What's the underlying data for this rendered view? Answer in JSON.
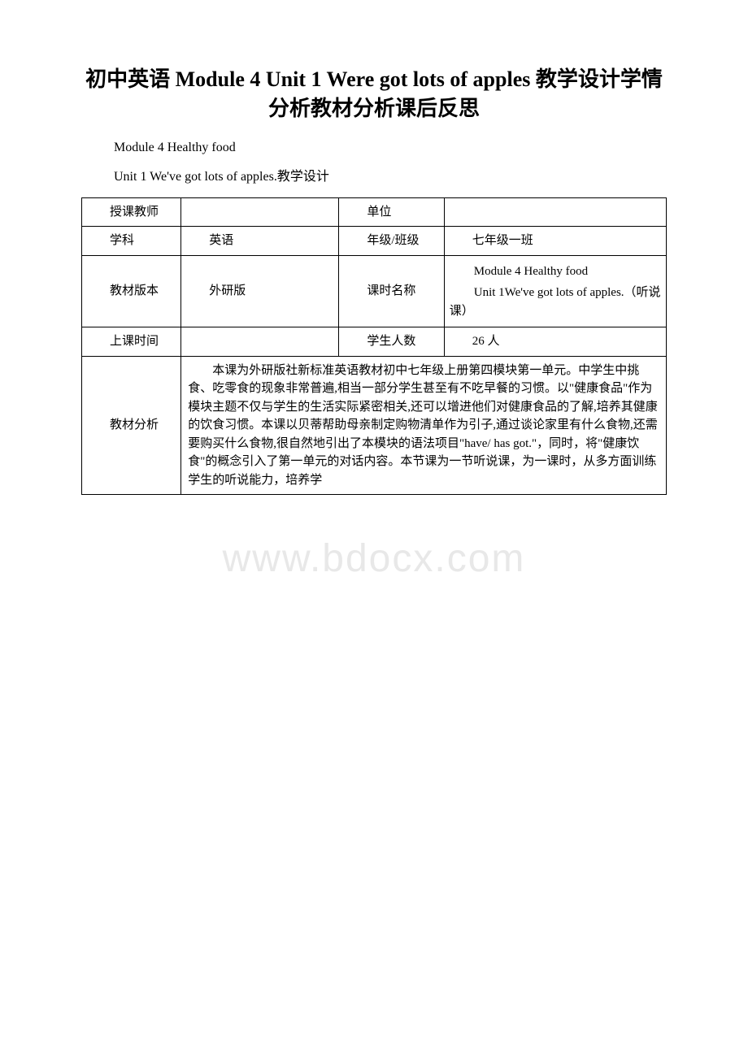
{
  "title": "初中英语 Module 4 Unit 1 Were got lots of apples 教学设计学情分析教材分析课后反思",
  "subtitle1": "Module 4 Healthy food",
  "subtitle2": "Unit 1 We've got lots of apples.教学设计",
  "watermark": "www.bdocx.com",
  "table": {
    "row1": {
      "label1": "授课教师",
      "value1": "",
      "label2": "单位",
      "value2": ""
    },
    "row2": {
      "label1": "学科",
      "value1": "英语",
      "label2": "年级/班级",
      "value2": "七年级一班"
    },
    "row3": {
      "label1": "教材版本",
      "value1": "外研版",
      "label2": "课时名称",
      "value2_line1": "Module 4 Healthy food",
      "value2_line2": "Unit 1We've got lots of apples.（听说课）"
    },
    "row4": {
      "label1": "上课时间",
      "value1": "",
      "label2": "学生人数",
      "value2": "26 人"
    },
    "row5": {
      "label1": "教材分析",
      "content": "本课为外研版社新标准英语教材初中七年级上册第四模块第一单元。中学生中挑食、吃零食的现象非常普遍,相当一部分学生甚至有不吃早餐的习惯。以\"健康食品\"作为模块主题不仅与学生的生活实际紧密相关,还可以增进他们对健康食品的了解,培养其健康的饮食习惯。本课以贝蒂帮助母亲制定购物清单作为引子,通过谈论家里有什么食物,还需要购买什么食物,很自然地引出了本模块的语法项目\"have/ has got.\"，同时，将\"健康饮食\"的概念引入了第一单元的对话内容。本节课为一节听说课，为一课时，从多方面训练学生的听说能力，培养学"
    }
  },
  "styling": {
    "background_color": "#ffffff",
    "border_color": "#000000",
    "text_color": "#000000",
    "watermark_color": "#e8e8e8",
    "title_fontsize": 26,
    "body_fontsize": 15,
    "font_family": "SimSun"
  }
}
